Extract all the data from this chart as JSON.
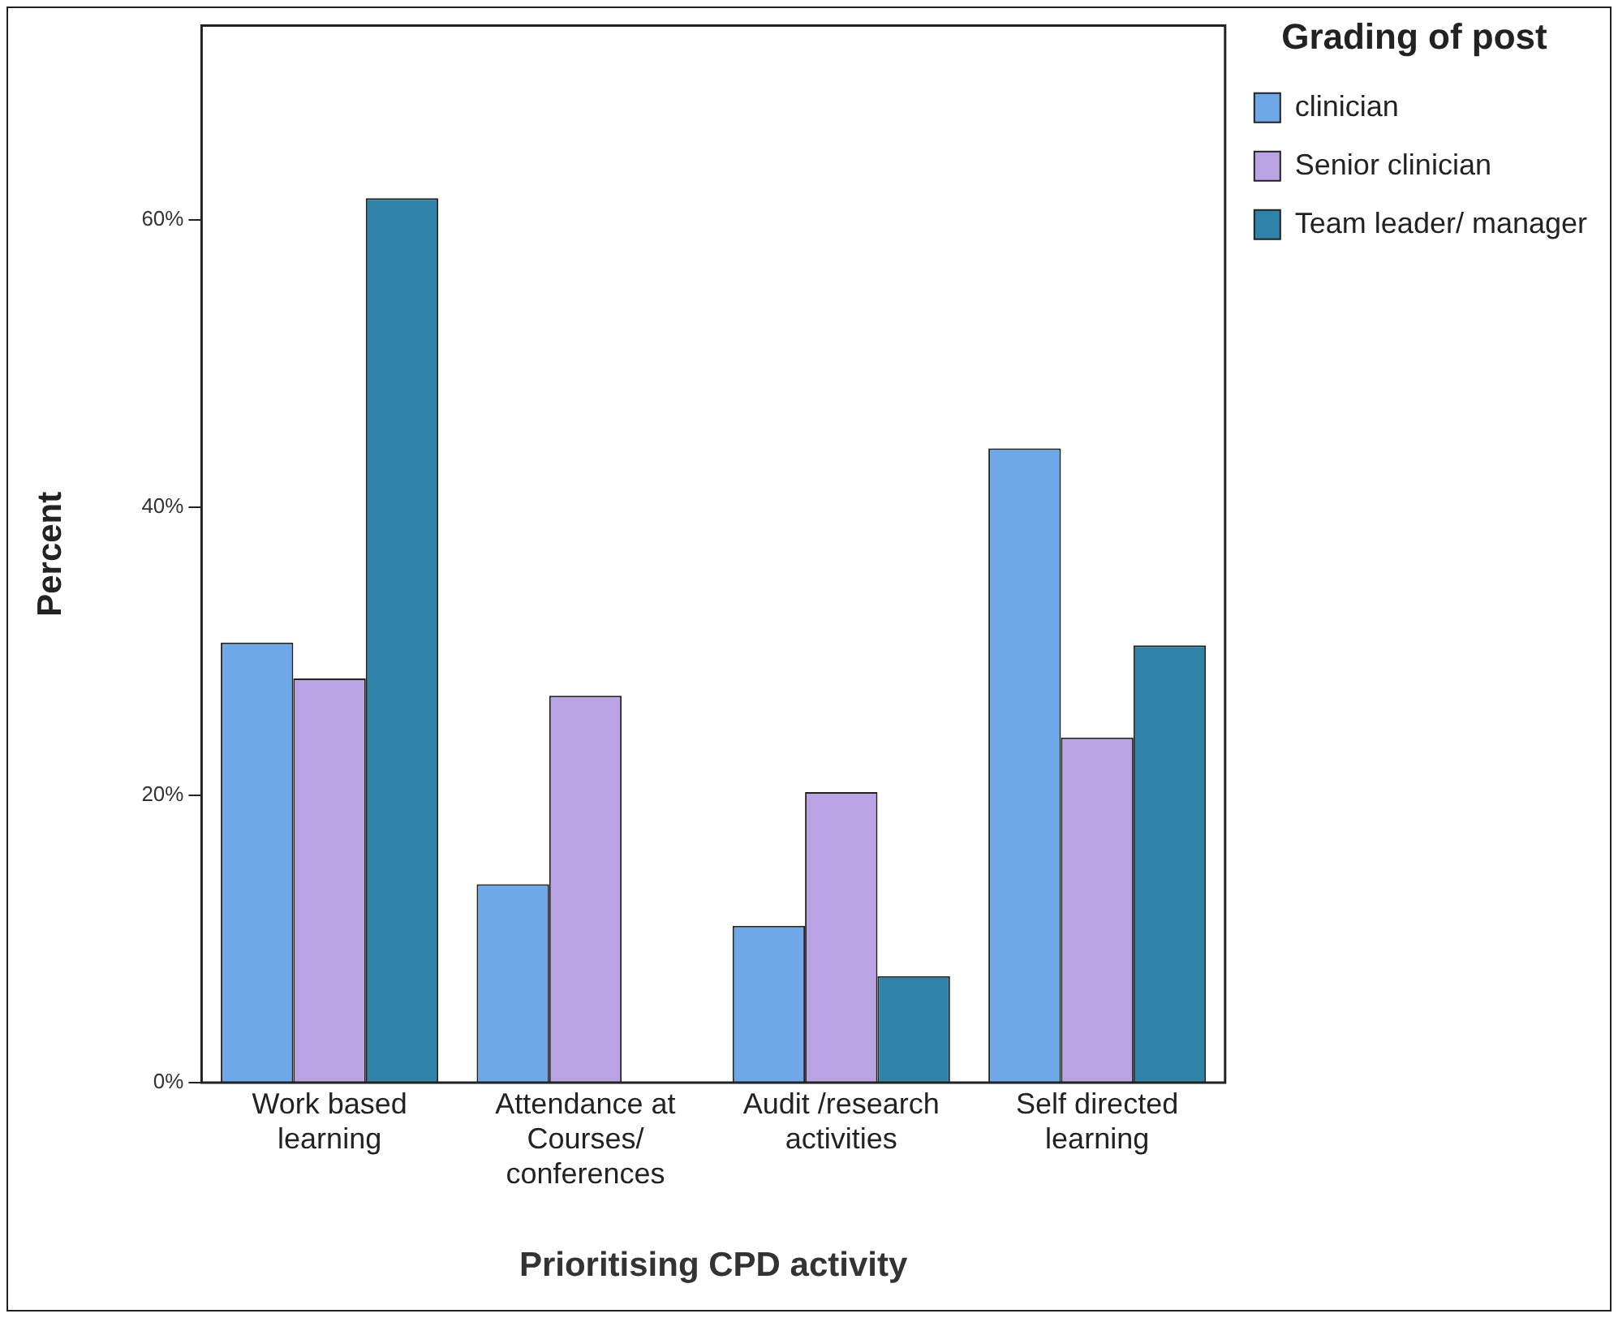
{
  "chart_data": {
    "type": "bar",
    "xlabel": "Prioritising CPD activity",
    "ylabel": "Percent",
    "legend_title": "Grading of post",
    "legend": "top right",
    "grid": false,
    "categories": [
      "Work based learning",
      "Attendance at Courses/ conferences",
      "Audit /research activities",
      "Self directed learning"
    ],
    "series": [
      {
        "name": "clinician",
        "color": "#6fa8e8",
        "values": [
          30.6,
          13.8,
          10.9,
          44.1
        ]
      },
      {
        "name": "Senior clinician",
        "color": "#b9a3e3",
        "values": [
          28.1,
          26.9,
          20.2,
          24.0
        ]
      },
      {
        "name": "Team leader/ manager",
        "color": "#2f82a8",
        "values": [
          61.5,
          0,
          7.4,
          30.4
        ]
      }
    ],
    "ylim": [
      0,
      73.5
    ],
    "yticks": [
      {
        "value": 0,
        "label": "0%"
      },
      {
        "value": 20,
        "label": "20%"
      },
      {
        "value": 40,
        "label": "40%"
      },
      {
        "value": 60,
        "label": "60%"
      }
    ]
  }
}
